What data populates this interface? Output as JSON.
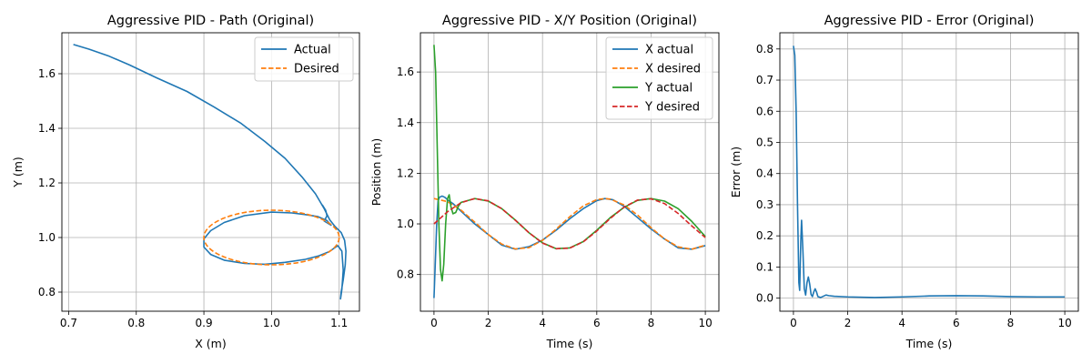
{
  "chart_data": [
    {
      "id": "path",
      "type": "line",
      "title": "Aggressive PID - Path (Original)",
      "xlabel": "X (m)",
      "ylabel": "Y (m)",
      "xlim": [
        0.69,
        1.13
      ],
      "ylim": [
        0.73,
        1.75
      ],
      "xticks": [
        0.7,
        0.8,
        0.9,
        1.0,
        1.1
      ],
      "yticks": [
        0.8,
        1.0,
        1.2,
        1.4,
        1.6
      ],
      "tick_decimals": 1,
      "grid": true,
      "legend_position": "top-right",
      "series": [
        {
          "name": "Actual",
          "color": "#1f77b4",
          "style": "solid",
          "points": [
            [
              0.707,
              1.707
            ],
            [
              0.73,
              1.69
            ],
            [
              0.76,
              1.664
            ],
            [
              0.79,
              1.632
            ],
            [
              0.83,
              1.585
            ],
            [
              0.875,
              1.535
            ],
            [
              0.915,
              1.478
            ],
            [
              0.955,
              1.418
            ],
            [
              0.99,
              1.352
            ],
            [
              1.02,
              1.29
            ],
            [
              1.045,
              1.222
            ],
            [
              1.065,
              1.16
            ],
            [
              1.078,
              1.105
            ],
            [
              1.086,
              1.065
            ],
            [
              1.094,
              1.04
            ],
            [
              1.103,
              1.018
            ],
            [
              1.108,
              0.99
            ],
            [
              1.11,
              0.95
            ],
            [
              1.109,
              0.9
            ],
            [
              1.106,
              0.845
            ],
            [
              1.103,
              0.8
            ],
            [
              1.102,
              0.775
            ],
            [
              1.104,
              0.81
            ],
            [
              1.106,
              0.88
            ],
            [
              1.104,
              0.95
            ],
            [
              1.098,
              0.97
            ],
            [
              1.085,
              0.948
            ],
            [
              1.07,
              0.933
            ],
            [
              1.05,
              0.92
            ],
            [
              1.02,
              0.909
            ],
            [
              0.99,
              0.902
            ],
            [
              0.96,
              0.905
            ],
            [
              0.93,
              0.917
            ],
            [
              0.91,
              0.938
            ],
            [
              0.9,
              0.965
            ],
            [
              0.9,
              0.995
            ],
            [
              0.91,
              1.025
            ],
            [
              0.93,
              1.055
            ],
            [
              0.96,
              1.08
            ],
            [
              1.0,
              1.093
            ],
            [
              1.03,
              1.09
            ],
            [
              1.05,
              1.084
            ],
            [
              1.068,
              1.077
            ],
            [
              1.082,
              1.062
            ],
            [
              1.088,
              1.045
            ],
            [
              1.078,
              1.06
            ],
            [
              1.082,
              1.08
            ],
            [
              1.08,
              1.1
            ],
            [
              1.075,
              1.12
            ]
          ]
        },
        {
          "name": "Desired",
          "color": "#ff7f0e",
          "style": "dashed",
          "ellipse": {
            "cx": 1.0,
            "cy": 1.0,
            "rx": 0.1,
            "ry": 0.1
          }
        }
      ]
    },
    {
      "id": "xy",
      "type": "line",
      "title": "Aggressive PID - X/Y Position (Original)",
      "xlabel": "Time (s)",
      "ylabel": "Position (m)",
      "xlim": [
        -0.5,
        10.5
      ],
      "ylim": [
        0.655,
        1.755
      ],
      "xticks": [
        0,
        2,
        4,
        6,
        8,
        10
      ],
      "yticks": [
        0.8,
        1.0,
        1.2,
        1.4,
        1.6
      ],
      "tick_decimals_x": 0,
      "tick_decimals_y": 1,
      "grid": true,
      "legend_position": "top-right",
      "series": [
        {
          "name": "X actual",
          "color": "#1f77b4",
          "style": "solid",
          "points": [
            [
              0,
              0.707
            ],
            [
              0.05,
              0.85
            ],
            [
              0.1,
              1.0
            ],
            [
              0.15,
              1.09
            ],
            [
              0.2,
              1.105
            ],
            [
              0.3,
              1.11
            ],
            [
              0.4,
              1.105
            ],
            [
              0.5,
              1.095
            ],
            [
              0.7,
              1.08
            ],
            [
              1,
              1.05
            ],
            [
              1.5,
              1.0
            ],
            [
              2,
              0.958
            ],
            [
              2.5,
              0.916
            ],
            [
              3,
              0.9
            ],
            [
              3.5,
              0.91
            ],
            [
              4,
              0.936
            ],
            [
              4.5,
              0.975
            ],
            [
              5,
              1.02
            ],
            [
              5.5,
              1.06
            ],
            [
              6,
              1.092
            ],
            [
              6.3,
              1.1
            ],
            [
              6.6,
              1.095
            ],
            [
              7,
              1.07
            ],
            [
              7.5,
              1.025
            ],
            [
              8,
              0.98
            ],
            [
              8.5,
              0.94
            ],
            [
              9,
              0.905
            ],
            [
              9.5,
              0.9
            ],
            [
              10,
              0.914
            ]
          ]
        },
        {
          "name": "X desired",
          "color": "#ff7f0e",
          "style": "dashed",
          "points": [
            [
              0,
              1.1
            ],
            [
              0.5,
              1.088
            ],
            [
              1,
              1.054
            ],
            [
              1.5,
              1.007
            ],
            [
              2,
              0.958
            ],
            [
              2.5,
              0.92
            ],
            [
              3,
              0.901
            ],
            [
              3.5,
              0.906
            ],
            [
              4,
              0.935
            ],
            [
              4.5,
              0.979
            ],
            [
              5,
              1.028
            ],
            [
              5.5,
              1.071
            ],
            [
              6,
              1.096
            ],
            [
              6.3,
              1.1
            ],
            [
              6.5,
              1.098
            ],
            [
              7,
              1.075
            ],
            [
              7.5,
              1.035
            ],
            [
              8,
              0.985
            ],
            [
              8.5,
              0.94
            ],
            [
              9,
              0.909
            ],
            [
              9.5,
              0.9
            ],
            [
              10,
              0.916
            ]
          ]
        },
        {
          "name": "Y actual",
          "color": "#2ca02c",
          "style": "solid",
          "points": [
            [
              0,
              1.707
            ],
            [
              0.06,
              1.6
            ],
            [
              0.12,
              1.3
            ],
            [
              0.18,
              1.0
            ],
            [
              0.24,
              0.82
            ],
            [
              0.3,
              0.775
            ],
            [
              0.36,
              0.84
            ],
            [
              0.43,
              1.0
            ],
            [
              0.5,
              1.1
            ],
            [
              0.56,
              1.115
            ],
            [
              0.62,
              1.07
            ],
            [
              0.7,
              1.04
            ],
            [
              0.8,
              1.045
            ],
            [
              0.9,
              1.07
            ],
            [
              1,
              1.085
            ],
            [
              1.5,
              1.1
            ],
            [
              2,
              1.09
            ],
            [
              2.5,
              1.06
            ],
            [
              3,
              1.015
            ],
            [
              3.5,
              0.965
            ],
            [
              4,
              0.925
            ],
            [
              4.5,
              0.902
            ],
            [
              5,
              0.905
            ],
            [
              5.5,
              0.93
            ],
            [
              6,
              0.975
            ],
            [
              6.5,
              1.025
            ],
            [
              7,
              1.065
            ],
            [
              7.5,
              1.093
            ],
            [
              8,
              1.1
            ],
            [
              8.5,
              1.09
            ],
            [
              9,
              1.06
            ],
            [
              9.5,
              1.01
            ],
            [
              10,
              0.95
            ]
          ]
        },
        {
          "name": "Y desired",
          "color": "#d62728",
          "style": "dashed",
          "points": [
            [
              0,
              1.0
            ],
            [
              0.5,
              1.048
            ],
            [
              1,
              1.084
            ],
            [
              1.5,
              1.1
            ],
            [
              2,
              1.091
            ],
            [
              2.5,
              1.06
            ],
            [
              3,
              1.014
            ],
            [
              3.5,
              0.965
            ],
            [
              4,
              0.924
            ],
            [
              4.5,
              0.902
            ],
            [
              5,
              0.904
            ],
            [
              5.5,
              0.929
            ],
            [
              6,
              0.972
            ],
            [
              6.5,
              1.022
            ],
            [
              7,
              1.066
            ],
            [
              7.5,
              1.094
            ],
            [
              8,
              1.099
            ],
            [
              8.5,
              1.08
            ],
            [
              9,
              1.041
            ],
            [
              9.5,
              0.992
            ],
            [
              10,
              0.946
            ]
          ]
        }
      ]
    },
    {
      "id": "error",
      "type": "line",
      "title": "Aggressive PID - Error (Original)",
      "xlabel": "Time (s)",
      "ylabel": "Error (m)",
      "xlim": [
        -0.5,
        10.5
      ],
      "ylim": [
        -0.042,
        0.852
      ],
      "xticks": [
        0,
        2,
        4,
        6,
        8,
        10
      ],
      "yticks": [
        0.0,
        0.1,
        0.2,
        0.3,
        0.4,
        0.5,
        0.6,
        0.7,
        0.8
      ],
      "tick_decimals_x": 0,
      "tick_decimals_y": 1,
      "grid": true,
      "series": [
        {
          "name": "",
          "color": "#1f77b4",
          "style": "solid",
          "points": [
            [
              0,
              0.81
            ],
            [
              0.05,
              0.78
            ],
            [
              0.1,
              0.6
            ],
            [
              0.15,
              0.3
            ],
            [
              0.2,
              0.05
            ],
            [
              0.23,
              0.025
            ],
            [
              0.27,
              0.18
            ],
            [
              0.3,
              0.25
            ],
            [
              0.35,
              0.15
            ],
            [
              0.4,
              0.03
            ],
            [
              0.45,
              0.01
            ],
            [
              0.5,
              0.05
            ],
            [
              0.55,
              0.068
            ],
            [
              0.6,
              0.045
            ],
            [
              0.65,
              0.012
            ],
            [
              0.7,
              0.005
            ],
            [
              0.75,
              0.02
            ],
            [
              0.8,
              0.03
            ],
            [
              0.85,
              0.02
            ],
            [
              0.9,
              0.005
            ],
            [
              1,
              0.002
            ],
            [
              1.1,
              0.006
            ],
            [
              1.2,
              0.01
            ],
            [
              1.3,
              0.008
            ],
            [
              1.5,
              0.006
            ],
            [
              2,
              0.004
            ],
            [
              3,
              0.002
            ],
            [
              4,
              0.004
            ],
            [
              5,
              0.007
            ],
            [
              6,
              0.008
            ],
            [
              7,
              0.007
            ],
            [
              8,
              0.005
            ],
            [
              9,
              0.004
            ],
            [
              10,
              0.004
            ]
          ]
        }
      ]
    }
  ]
}
